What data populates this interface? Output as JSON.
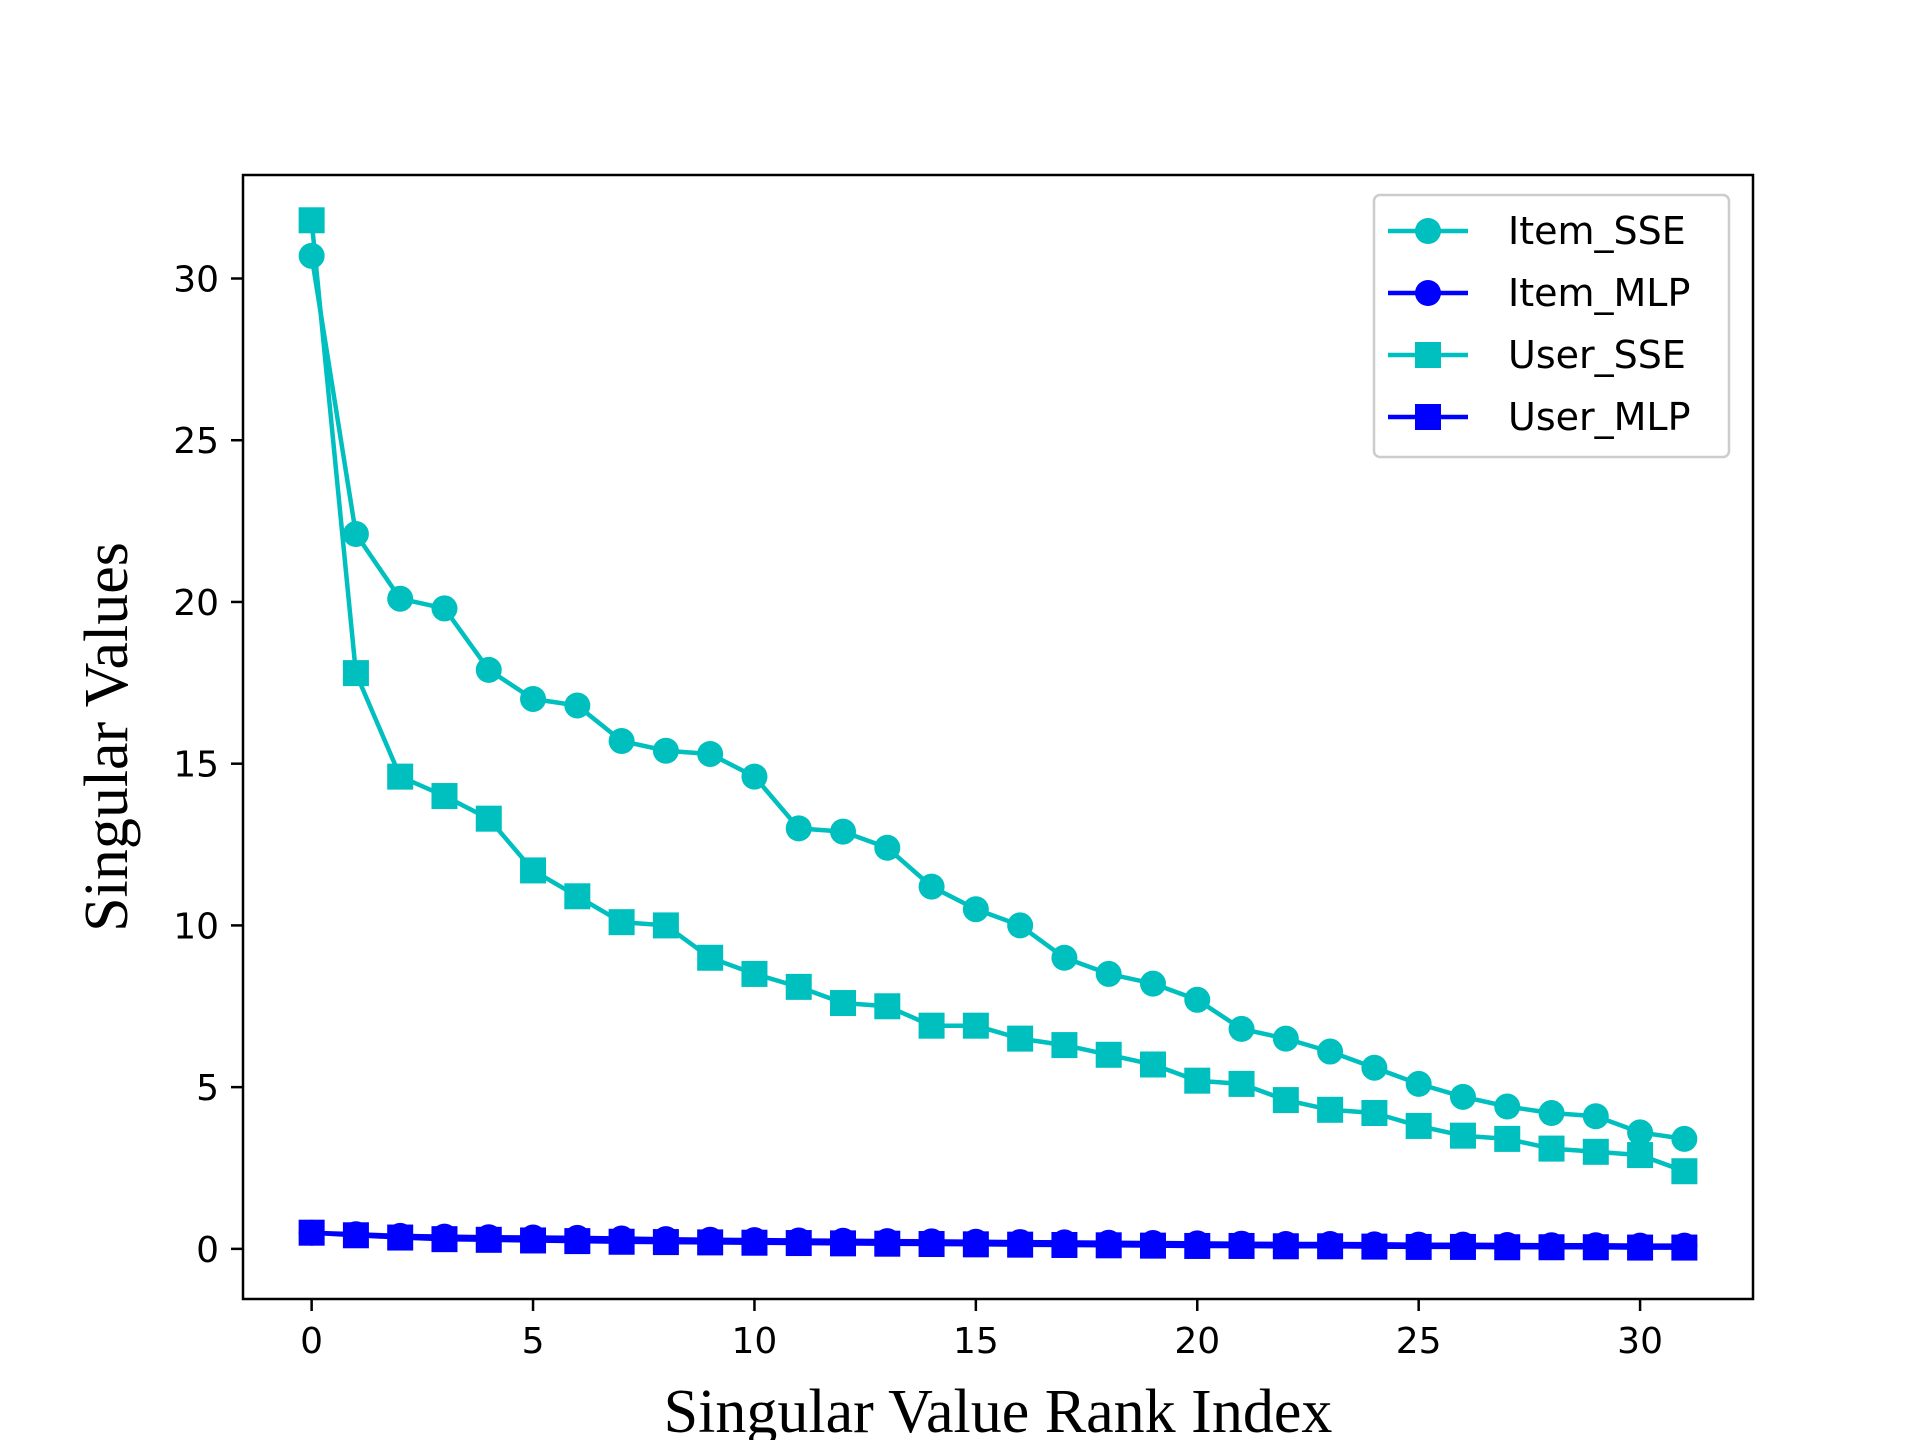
{
  "chart_data": {
    "type": "line",
    "title": "",
    "xlabel": "Singular Value Rank Index",
    "ylabel": "Singular Values",
    "xlim": [
      -1.55,
      32.55
    ],
    "ylim": [
      -1.55,
      33.2
    ],
    "xticks": [
      0,
      5,
      10,
      15,
      20,
      25,
      30
    ],
    "yticks": [
      0,
      5,
      10,
      15,
      20,
      25,
      30
    ],
    "grid": false,
    "legend_position": "top-right",
    "x": [
      0,
      1,
      2,
      3,
      4,
      5,
      6,
      7,
      8,
      9,
      10,
      11,
      12,
      13,
      14,
      15,
      16,
      17,
      18,
      19,
      20,
      21,
      22,
      23,
      24,
      25,
      26,
      27,
      28,
      29,
      30,
      31
    ],
    "series": [
      {
        "name": "Item_SSE",
        "color": "#00bfbf",
        "marker": "circle",
        "values": [
          30.7,
          22.1,
          20.1,
          19.8,
          17.9,
          17.0,
          16.8,
          15.7,
          15.4,
          15.3,
          14.6,
          13.0,
          12.9,
          12.4,
          11.2,
          10.5,
          10.0,
          9.0,
          8.5,
          8.2,
          7.7,
          6.8,
          6.5,
          6.1,
          5.6,
          5.1,
          4.7,
          4.4,
          4.2,
          4.1,
          3.6,
          3.4
        ]
      },
      {
        "name": "Item_MLP",
        "color": "#0000ff",
        "marker": "circle",
        "values": [
          0.5,
          0.45,
          0.4,
          0.38,
          0.36,
          0.35,
          0.34,
          0.32,
          0.3,
          0.28,
          0.27,
          0.26,
          0.25,
          0.24,
          0.23,
          0.22,
          0.21,
          0.2,
          0.19,
          0.18,
          0.17,
          0.16,
          0.15,
          0.15,
          0.14,
          0.13,
          0.13,
          0.12,
          0.11,
          0.11,
          0.1,
          0.1
        ]
      },
      {
        "name": "User_SSE",
        "color": "#00bfbf",
        "marker": "square",
        "values": [
          31.8,
          17.8,
          14.6,
          14.0,
          13.3,
          11.7,
          10.9,
          10.1,
          10.0,
          9.0,
          8.5,
          8.1,
          7.6,
          7.5,
          6.9,
          6.9,
          6.5,
          6.3,
          6.0,
          5.7,
          5.2,
          5.1,
          4.6,
          4.3,
          4.2,
          3.8,
          3.5,
          3.4,
          3.1,
          3.0,
          2.9,
          2.4
        ]
      },
      {
        "name": "User_MLP",
        "color": "#0000ff",
        "marker": "square",
        "values": [
          0.5,
          0.42,
          0.35,
          0.3,
          0.28,
          0.26,
          0.24,
          0.22,
          0.21,
          0.2,
          0.19,
          0.18,
          0.17,
          0.16,
          0.15,
          0.14,
          0.13,
          0.12,
          0.11,
          0.1,
          0.09,
          0.09,
          0.08,
          0.08,
          0.07,
          0.06,
          0.06,
          0.05,
          0.05,
          0.05,
          0.04,
          0.04
        ]
      }
    ]
  }
}
